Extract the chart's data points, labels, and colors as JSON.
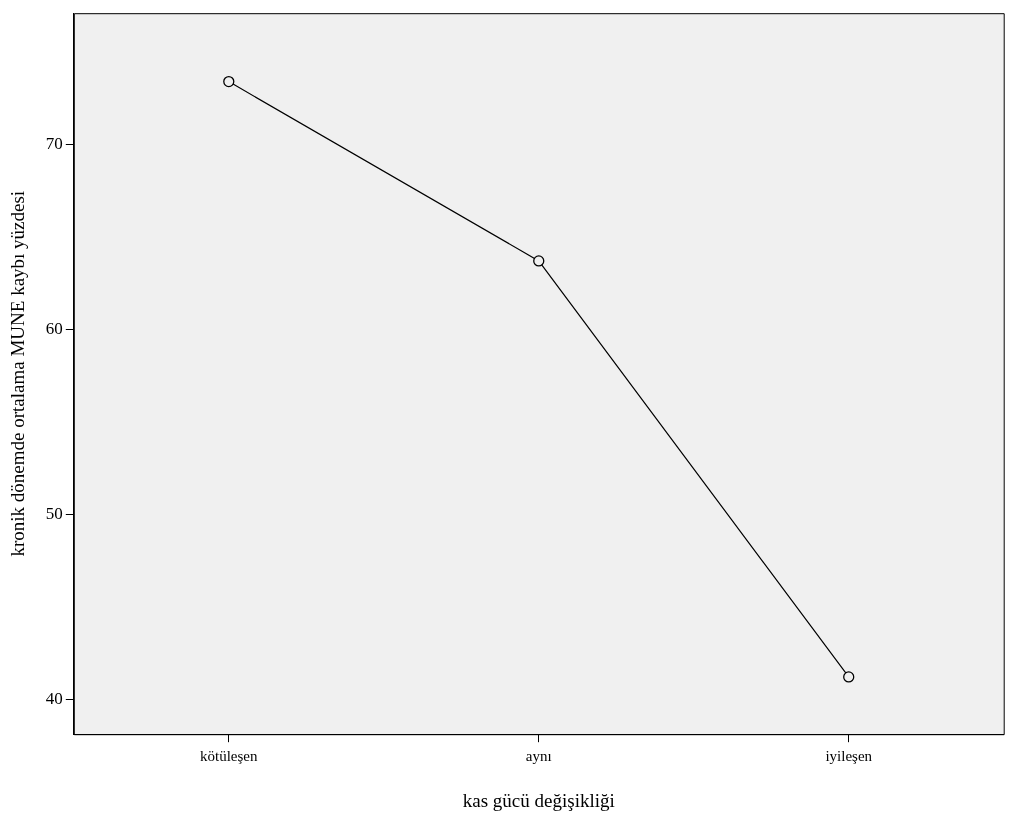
{
  "chart_data": {
    "type": "line",
    "xlabel": "kas gücü değişikliği",
    "ylabel": "kronik dönemde ortalama MUNE kaybı yüzdesi",
    "categories": [
      "kötüleşen",
      "aynı",
      "iyileşen"
    ],
    "series": [
      {
        "color": "#000000",
        "values": [
          73.4,
          63.7,
          41.2
        ]
      }
    ],
    "ylim": [
      38.1,
      77.1
    ],
    "yticks": [
      40,
      50,
      60,
      70
    ],
    "grid": false,
    "legend": false,
    "marker": "circle",
    "line_style": "solid"
  }
}
